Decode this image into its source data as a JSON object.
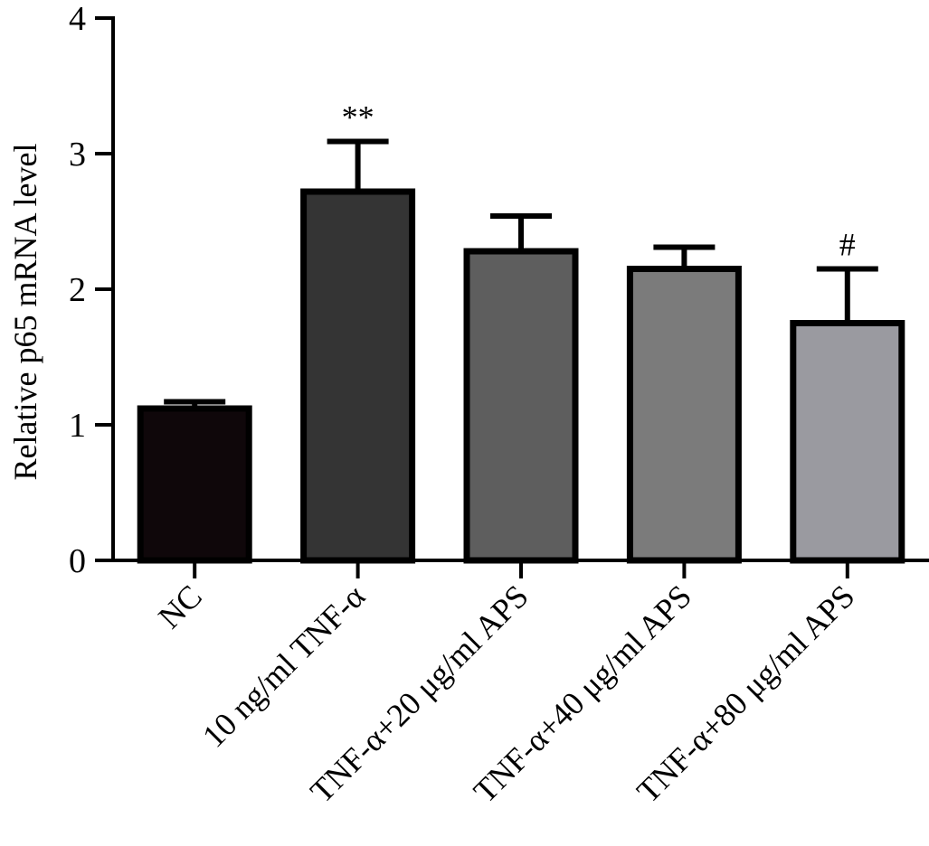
{
  "chart_data": {
    "type": "bar",
    "title": "",
    "xlabel": "",
    "ylabel": "Relative p65 mRNA level",
    "ylim": [
      0,
      4
    ],
    "yticks": [
      0,
      1,
      2,
      3,
      4
    ],
    "grid": false,
    "legend": "none",
    "categories": [
      "NC",
      "10 ng/ml TNF-α",
      "TNF-α+20 μg/ml APS",
      "TNF-α+40 μg/ml APS",
      "TNF-α+80 μg/ml APS"
    ],
    "values": [
      1.12,
      2.72,
      2.28,
      2.15,
      1.75
    ],
    "errors": [
      0.05,
      0.37,
      0.26,
      0.16,
      0.4
    ],
    "bar_colors": [
      "#0f070a",
      "#343434",
      "#5e5e5e",
      "#7b7b7b",
      "#9a9aa0"
    ],
    "annotations": [
      "",
      "**",
      "",
      "",
      "#"
    ]
  }
}
